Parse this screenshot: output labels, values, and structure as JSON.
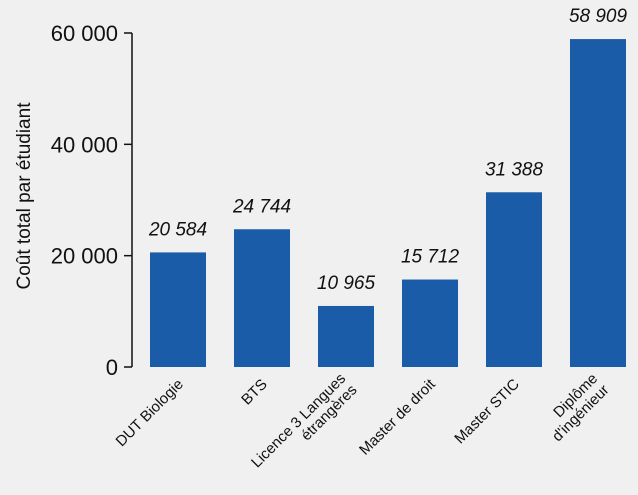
{
  "chart_data": {
    "type": "bar",
    "title": "",
    "xlabel": "",
    "ylabel": "Coût total par étudiant",
    "categories": [
      [
        "DUT Biologie"
      ],
      [
        "BTS"
      ],
      [
        "Licence 3 Langues",
        "étrangères"
      ],
      [
        "Master de droit"
      ],
      [
        "Master STIC"
      ],
      [
        "Diplôme",
        "d'ingénieur"
      ]
    ],
    "values": [
      20584,
      24744,
      10965,
      15712,
      31388,
      58909
    ],
    "value_labels": [
      "20 584",
      "24 744",
      "10 965",
      "15 712",
      "31 388",
      "58 909"
    ],
    "yticks": [
      0,
      20000,
      40000,
      60000
    ],
    "ytick_labels": [
      "0",
      "20 000",
      "40 000",
      "60 000"
    ],
    "ylim": [
      0,
      60000
    ],
    "grid": false,
    "legend": "none",
    "colors": {
      "bar": "#1a5ca8",
      "background": "#f0f0f0",
      "axis": "#111111"
    }
  }
}
